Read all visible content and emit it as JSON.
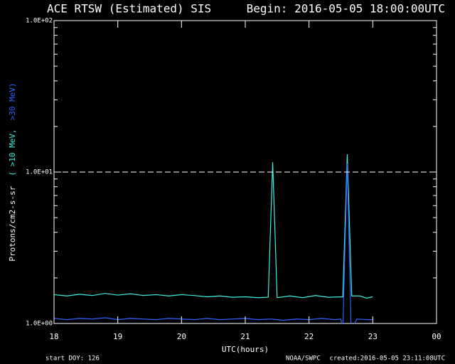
{
  "chart_data": {
    "type": "line",
    "title": "ACE RTSW (Estimated) SIS",
    "subtitle": "Begin: 2016-05-05 18:00:00UTC",
    "y_label": "Protons/cm2-s-sr",
    "x_label": "UTC(hours)",
    "footer_left": "start DOY:  126",
    "footer_center": "NOAA/SWPC",
    "footer_right": "created:2016-05-05 23:11:08UTC",
    "log_y": true,
    "xlim": [
      18,
      24
    ],
    "xticks": [
      18,
      19,
      20,
      21,
      22,
      23,
      {
        "value": 24,
        "label": "00"
      }
    ],
    "ylim": [
      1,
      100
    ],
    "yticks": [
      {
        "value": 1,
        "label": "1.0E+00"
      },
      {
        "value": 10,
        "label": "1.0E+01"
      },
      {
        "value": 100,
        "label": "1.0E+02"
      }
    ],
    "minor_yticks": [
      2,
      3,
      4,
      5,
      6,
      7,
      8,
      9,
      20,
      30,
      40,
      50,
      60,
      70,
      80,
      90
    ],
    "threshold": 10,
    "series": [
      {
        "name": "( >10 MeV,",
        "color": "#40f0e0",
        "x": [
          18.0,
          18.2,
          18.4,
          18.6,
          18.8,
          19.0,
          19.2,
          19.4,
          19.6,
          19.8,
          20.0,
          20.2,
          20.4,
          20.6,
          20.8,
          21.0,
          21.2,
          21.36,
          21.43,
          21.5,
          21.7,
          21.9,
          22.1,
          22.3,
          22.53,
          22.6,
          22.67,
          22.8,
          22.9,
          23.0
        ],
        "values": [
          1.55,
          1.52,
          1.56,
          1.53,
          1.58,
          1.54,
          1.57,
          1.53,
          1.55,
          1.52,
          1.55,
          1.53,
          1.5,
          1.52,
          1.49,
          1.5,
          1.48,
          1.49,
          11.6,
          1.48,
          1.52,
          1.48,
          1.53,
          1.49,
          1.5,
          13.1,
          1.52,
          1.52,
          1.47,
          1.5
        ]
      },
      {
        "name": ">30 MeV)",
        "color": "#3060ff",
        "x": [
          18.0,
          18.2,
          18.4,
          18.6,
          18.8,
          19.0,
          19.2,
          19.4,
          19.6,
          19.8,
          20.0,
          20.2,
          20.4,
          20.6,
          20.8,
          21.0,
          21.2,
          21.4,
          21.6,
          21.8,
          22.0,
          22.2,
          22.4,
          22.5,
          22.53,
          22.6,
          22.66,
          22.75,
          22.9,
          23.0
        ],
        "values": [
          1.08,
          1.06,
          1.08,
          1.07,
          1.09,
          1.06,
          1.08,
          1.07,
          1.06,
          1.08,
          1.07,
          1.06,
          1.08,
          1.06,
          1.07,
          1.08,
          1.06,
          1.07,
          1.05,
          1.07,
          1.06,
          1.08,
          1.06,
          1.07,
          0.9,
          11.4,
          0.9,
          1.07,
          1.06,
          1.06
        ]
      }
    ]
  }
}
